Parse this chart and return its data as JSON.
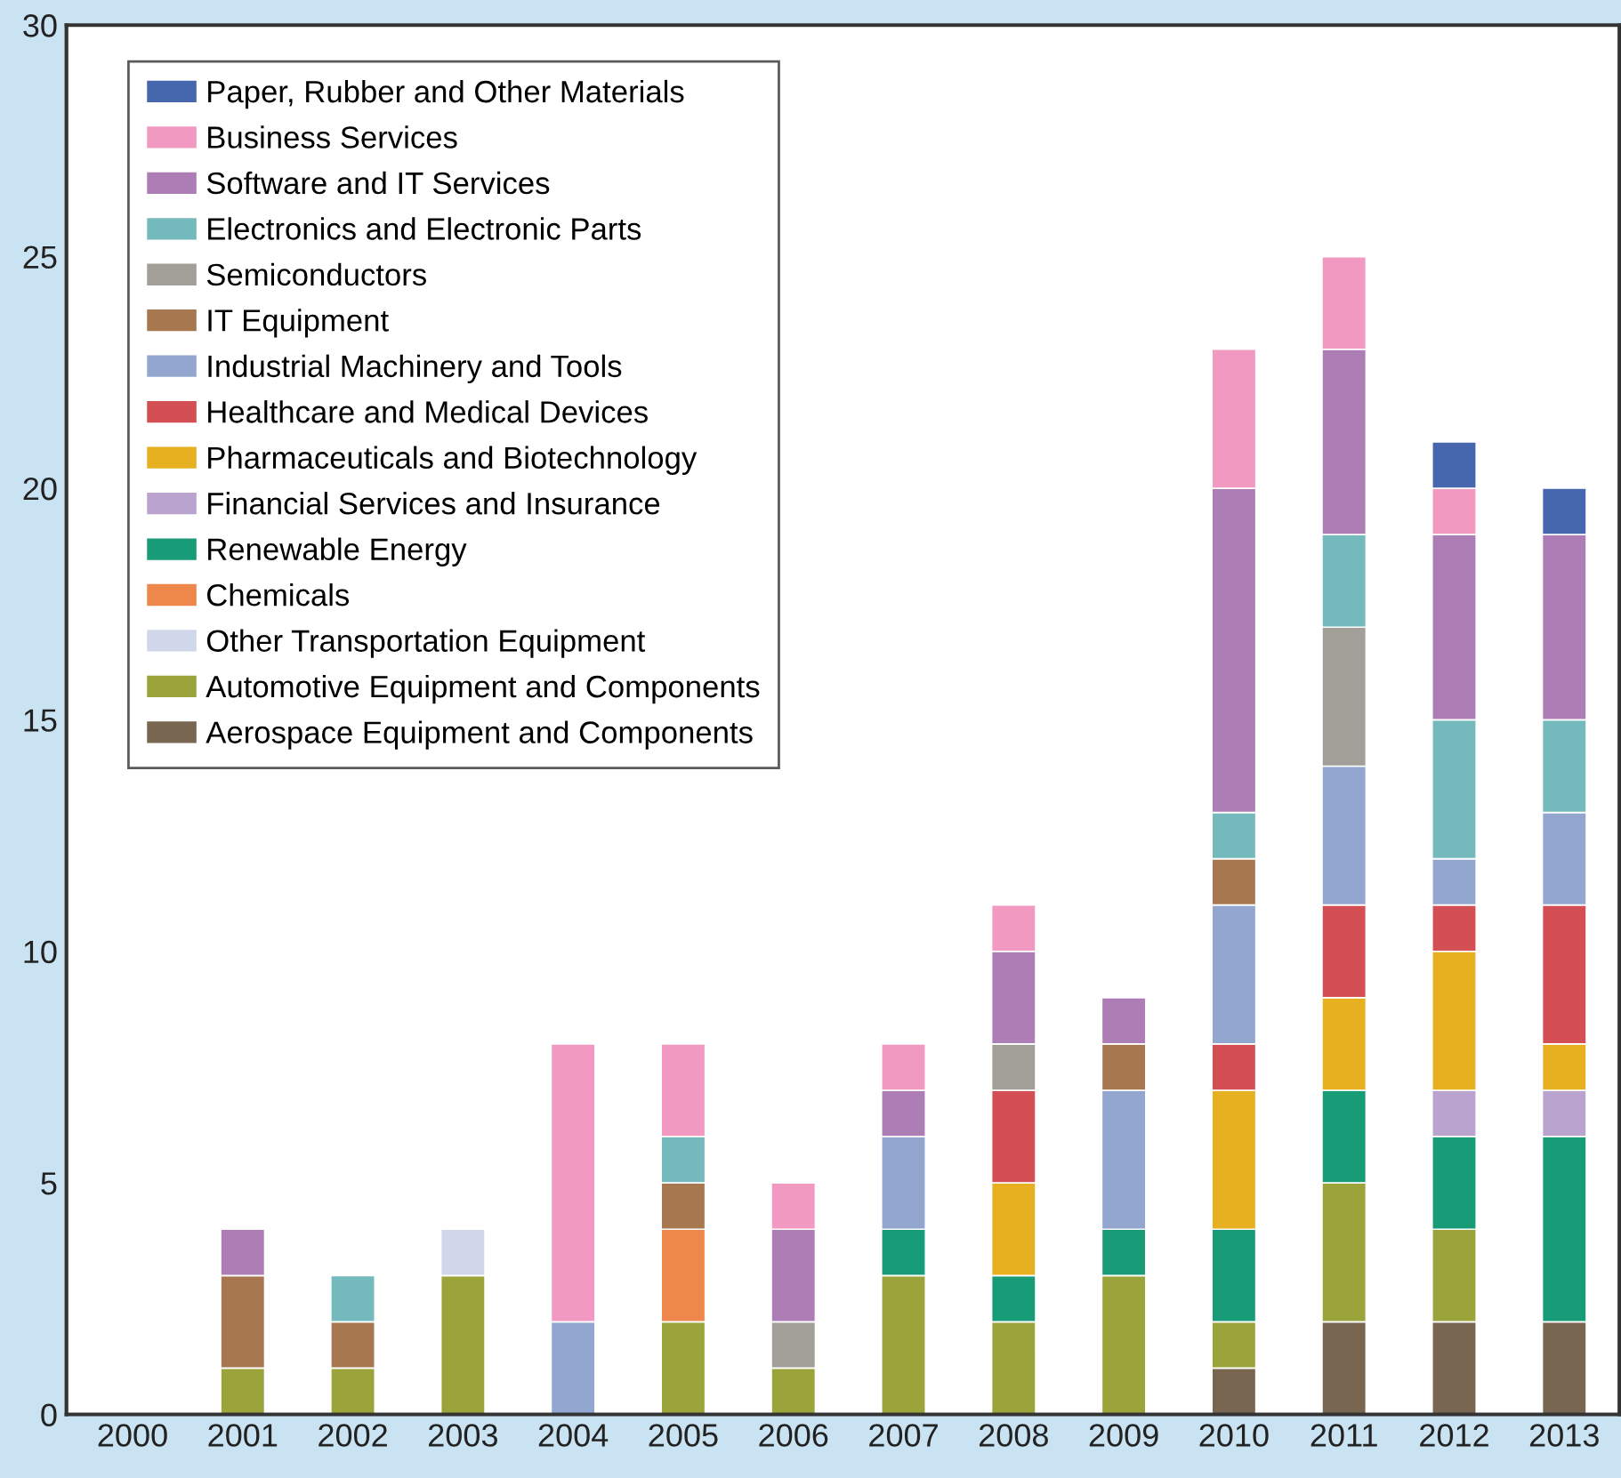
{
  "chart_data": {
    "type": "bar",
    "stacked": true,
    "categories": [
      "2000",
      "2001",
      "2002",
      "2003",
      "2004",
      "2005",
      "2006",
      "2007",
      "2008",
      "2009",
      "2010",
      "2011",
      "2012",
      "2013"
    ],
    "series": [
      {
        "name": "Aerospace Equipment and Components",
        "color": "#786651",
        "values": [
          null,
          null,
          null,
          null,
          null,
          null,
          null,
          null,
          null,
          null,
          1,
          2,
          2,
          2
        ]
      },
      {
        "name": "Automotive Equipment and Components",
        "color": "#9ba43a",
        "values": [
          null,
          1,
          1,
          3,
          null,
          2,
          1,
          3,
          2,
          3,
          1,
          3,
          2,
          null
        ]
      },
      {
        "name": "Other Transportation Equipment",
        "color": "#d0d7eb",
        "values": [
          null,
          null,
          null,
          1,
          null,
          null,
          null,
          null,
          null,
          null,
          null,
          null,
          null,
          null
        ]
      },
      {
        "name": "Chemicals",
        "color": "#ee874a",
        "values": [
          null,
          null,
          null,
          null,
          null,
          2,
          null,
          null,
          null,
          null,
          null,
          null,
          null,
          null
        ]
      },
      {
        "name": "Renewable Energy",
        "color": "#189c77",
        "values": [
          null,
          null,
          null,
          null,
          null,
          null,
          null,
          1,
          1,
          1,
          2,
          2,
          2,
          4
        ]
      },
      {
        "name": "Financial Services and Insurance",
        "color": "#bba3cf",
        "values": [
          null,
          null,
          null,
          null,
          null,
          null,
          null,
          null,
          null,
          null,
          null,
          null,
          1,
          1
        ]
      },
      {
        "name": "Pharmaceuticals and Biotechnology",
        "color": "#e6b020",
        "values": [
          null,
          null,
          null,
          null,
          null,
          null,
          null,
          null,
          2,
          null,
          3,
          2,
          3,
          1
        ]
      },
      {
        "name": "Healthcare and Medical Devices",
        "color": "#d44f54",
        "values": [
          null,
          null,
          null,
          null,
          null,
          null,
          null,
          null,
          2,
          null,
          1,
          2,
          1,
          3
        ]
      },
      {
        "name": "Industrial Machinery and Tools",
        "color": "#93a6d0",
        "values": [
          null,
          null,
          null,
          null,
          2,
          null,
          null,
          2,
          null,
          3,
          3,
          3,
          1,
          2
        ]
      },
      {
        "name": "IT Equipment",
        "color": "#a7784f",
        "values": [
          null,
          2,
          1,
          null,
          null,
          1,
          null,
          null,
          null,
          1,
          1,
          null,
          null,
          null
        ]
      },
      {
        "name": "Semiconductors",
        "color": "#a29e98",
        "values": [
          null,
          null,
          null,
          null,
          null,
          null,
          1,
          null,
          1,
          null,
          null,
          3,
          null,
          null
        ]
      },
      {
        "name": "Electronics and Electronic Parts",
        "color": "#74babd",
        "values": [
          null,
          null,
          1,
          null,
          null,
          1,
          null,
          null,
          null,
          null,
          1,
          2,
          3,
          2
        ]
      },
      {
        "name": "Software and IT Services",
        "color": "#ad7db6",
        "values": [
          null,
          1,
          null,
          null,
          null,
          null,
          2,
          1,
          2,
          1,
          7,
          4,
          4,
          4
        ]
      },
      {
        "name": "Business Services",
        "color": "#f299c2",
        "values": [
          null,
          null,
          null,
          null,
          6,
          2,
          1,
          1,
          1,
          null,
          3,
          2,
          1,
          null
        ]
      },
      {
        "name": "Paper, Rubber and Other Materials",
        "color": "#4666ae",
        "values": [
          null,
          null,
          null,
          null,
          null,
          null,
          null,
          null,
          null,
          null,
          null,
          null,
          1,
          1
        ]
      }
    ],
    "ylim": [
      0,
      30
    ],
    "yticks": [
      0,
      5,
      10,
      15,
      20,
      25,
      30
    ],
    "grid": false,
    "legend": "top left"
  }
}
